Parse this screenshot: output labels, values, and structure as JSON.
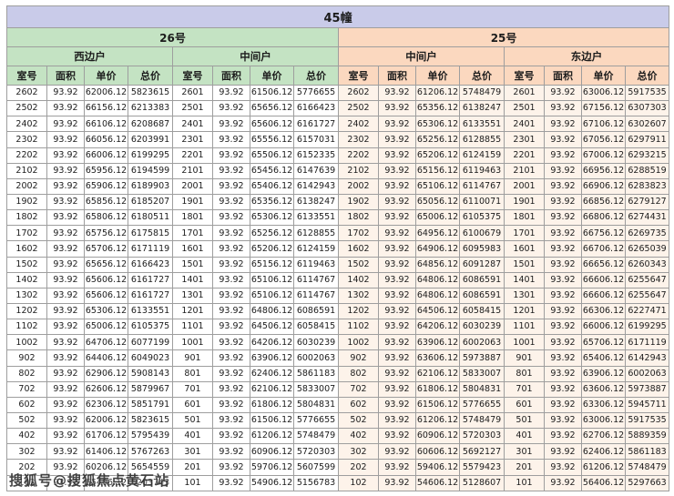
{
  "table": {
    "title": "45幢",
    "buildings": [
      {
        "name": "26号",
        "units": [
          "西边户",
          "中间户"
        ]
      },
      {
        "name": "25号",
        "units": [
          "中间户",
          "东边户"
        ]
      }
    ],
    "columns": [
      "室号",
      "面积",
      "单价",
      "总价"
    ],
    "rows": [
      [
        "2602",
        "93.92",
        "62006.12",
        "5823615",
        "2601",
        "93.92",
        "61506.12",
        "5776655",
        "2602",
        "93.92",
        "61206.12",
        "5748479",
        "2601",
        "93.92",
        "63006.12",
        "5917535"
      ],
      [
        "2502",
        "93.92",
        "66156.12",
        "6213383",
        "2501",
        "93.92",
        "65656.12",
        "6166423",
        "2502",
        "93.92",
        "65356.12",
        "6138247",
        "2501",
        "93.92",
        "67156.12",
        "6307303"
      ],
      [
        "2402",
        "93.92",
        "66106.12",
        "6208687",
        "2401",
        "93.92",
        "65606.12",
        "6161727",
        "2402",
        "93.92",
        "65306.12",
        "6133551",
        "2401",
        "93.92",
        "67106.12",
        "6302607"
      ],
      [
        "2302",
        "93.92",
        "66056.12",
        "6203991",
        "2301",
        "93.92",
        "65556.12",
        "6157031",
        "2302",
        "93.92",
        "65256.12",
        "6128855",
        "2301",
        "93.92",
        "67056.12",
        "6297911"
      ],
      [
        "2202",
        "93.92",
        "66006.12",
        "6199295",
        "2201",
        "93.92",
        "65506.12",
        "6152335",
        "2202",
        "93.92",
        "65206.12",
        "6124159",
        "2201",
        "93.92",
        "67006.12",
        "6293215"
      ],
      [
        "2102",
        "93.92",
        "65956.12",
        "6194599",
        "2101",
        "93.92",
        "65456.12",
        "6147639",
        "2102",
        "93.92",
        "65156.12",
        "6119463",
        "2101",
        "93.92",
        "66956.12",
        "6288519"
      ],
      [
        "2002",
        "93.92",
        "65906.12",
        "6189903",
        "2001",
        "93.92",
        "65406.12",
        "6142943",
        "2002",
        "93.92",
        "65106.12",
        "6114767",
        "2001",
        "93.92",
        "66906.12",
        "6283823"
      ],
      [
        "1902",
        "93.92",
        "65856.12",
        "6185207",
        "1901",
        "93.92",
        "65356.12",
        "6138247",
        "1902",
        "93.92",
        "65056.12",
        "6110071",
        "1901",
        "93.92",
        "66856.12",
        "6279127"
      ],
      [
        "1802",
        "93.92",
        "65806.12",
        "6180511",
        "1801",
        "93.92",
        "65306.12",
        "6133551",
        "1802",
        "93.92",
        "65006.12",
        "6105375",
        "1801",
        "93.92",
        "66806.12",
        "6274431"
      ],
      [
        "1702",
        "93.92",
        "65756.12",
        "6175815",
        "1701",
        "93.92",
        "65256.12",
        "6128855",
        "1702",
        "93.92",
        "64956.12",
        "6100679",
        "1701",
        "93.92",
        "66756.12",
        "6269735"
      ],
      [
        "1602",
        "93.92",
        "65706.12",
        "6171119",
        "1601",
        "93.92",
        "65206.12",
        "6124159",
        "1602",
        "93.92",
        "64906.12",
        "6095983",
        "1601",
        "93.92",
        "66706.12",
        "6265039"
      ],
      [
        "1502",
        "93.92",
        "65656.12",
        "6166423",
        "1501",
        "93.92",
        "65156.12",
        "6119463",
        "1502",
        "93.92",
        "64856.12",
        "6091287",
        "1501",
        "93.92",
        "66656.12",
        "6260343"
      ],
      [
        "1402",
        "93.92",
        "65606.12",
        "6161727",
        "1401",
        "93.92",
        "65106.12",
        "6114767",
        "1402",
        "93.92",
        "64806.12",
        "6086591",
        "1401",
        "93.92",
        "66606.12",
        "6255647"
      ],
      [
        "1302",
        "93.92",
        "65606.12",
        "6161727",
        "1301",
        "93.92",
        "65106.12",
        "6114767",
        "1302",
        "93.92",
        "64806.12",
        "6086591",
        "1301",
        "93.92",
        "66606.12",
        "6255647"
      ],
      [
        "1202",
        "93.92",
        "65306.12",
        "6133551",
        "1201",
        "93.92",
        "64806.12",
        "6086591",
        "1202",
        "93.92",
        "64506.12",
        "6058415",
        "1201",
        "93.92",
        "66306.12",
        "6227471"
      ],
      [
        "1102",
        "93.92",
        "65006.12",
        "6105375",
        "1101",
        "93.92",
        "64506.12",
        "6058415",
        "1102",
        "93.92",
        "64206.12",
        "6030239",
        "1101",
        "93.92",
        "66006.12",
        "6199295"
      ],
      [
        "1002",
        "93.92",
        "64706.12",
        "6077199",
        "1001",
        "93.92",
        "64206.12",
        "6030239",
        "1002",
        "93.92",
        "63906.12",
        "6002063",
        "1001",
        "93.92",
        "65706.12",
        "6171119"
      ],
      [
        "902",
        "93.92",
        "64406.12",
        "6049023",
        "901",
        "93.92",
        "63906.12",
        "6002063",
        "902",
        "93.92",
        "63606.12",
        "5973887",
        "901",
        "93.92",
        "65406.12",
        "6142943"
      ],
      [
        "802",
        "93.92",
        "62906.12",
        "5908143",
        "801",
        "93.92",
        "62406.12",
        "5861183",
        "802",
        "93.92",
        "62106.12",
        "5833007",
        "801",
        "93.92",
        "63906.12",
        "6002063"
      ],
      [
        "702",
        "93.92",
        "62606.12",
        "5879967",
        "701",
        "93.92",
        "62106.12",
        "5833007",
        "702",
        "93.92",
        "61806.12",
        "5804831",
        "701",
        "93.92",
        "63606.12",
        "5973887"
      ],
      [
        "602",
        "93.92",
        "62306.12",
        "5851791",
        "601",
        "93.92",
        "61806.12",
        "5804831",
        "602",
        "93.92",
        "61506.12",
        "5776655",
        "601",
        "93.92",
        "63306.12",
        "5945711"
      ],
      [
        "502",
        "93.92",
        "62006.12",
        "5823615",
        "501",
        "93.92",
        "61506.12",
        "5776655",
        "502",
        "93.92",
        "61206.12",
        "5748479",
        "501",
        "93.92",
        "63006.12",
        "5917535"
      ],
      [
        "402",
        "93.92",
        "61706.12",
        "5795439",
        "401",
        "93.92",
        "61206.12",
        "5748479",
        "402",
        "93.92",
        "60906.12",
        "5720303",
        "401",
        "93.92",
        "62706.12",
        "5889359"
      ],
      [
        "302",
        "93.92",
        "61406.12",
        "5767263",
        "301",
        "93.92",
        "60906.12",
        "5720303",
        "302",
        "93.92",
        "60606.12",
        "5692127",
        "301",
        "93.92",
        "62406.12",
        "5861183"
      ],
      [
        "202",
        "93.92",
        "60206.12",
        "5654559",
        "201",
        "93.92",
        "59706.12",
        "5607599",
        "202",
        "93.92",
        "59406.12",
        "5579423",
        "201",
        "93.92",
        "61206.12",
        "5748479"
      ],
      [
        "102",
        "93.92",
        "55406.12",
        "5203743",
        "101",
        "93.92",
        "54906.12",
        "5156783",
        "102",
        "93.92",
        "54606.12",
        "5128607",
        "101",
        "93.92",
        "56406.12",
        "5297663"
      ]
    ]
  },
  "watermark": "搜狐号@搜狐焦点黄石站",
  "colors": {
    "band_title": "#c9cbe9",
    "band_building_26": "#c4e3c3",
    "band_building_25": "#fbd8bf",
    "right_half_tint": "#fdf3ea",
    "border": "#9e9e9e"
  }
}
